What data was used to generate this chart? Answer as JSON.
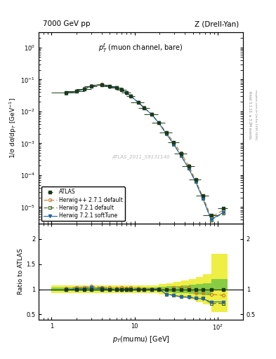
{
  "title_left": "7000 GeV pp",
  "title_right": "Z (Drell-Yan)",
  "annotation": "$p_T^{\\ell}$ (muon channel, bare)",
  "watermark": "ATLAS_2011_S9131140",
  "right_label1": "Rivet 3.1.10, ≥ 3.3M events",
  "right_label2": "mcplots.cern.ch [arXiv:1306.3436]",
  "xlabel": "$p_T$(mumu) [GeV]",
  "ylabel": "1/σ dσ/dp$_T$ [GeV$^{-1}$]",
  "ylabel_ratio": "Ratio to ATLAS",
  "xlim": [
    0.7,
    200
  ],
  "ylim_main": [
    3e-06,
    3
  ],
  "ylim_ratio": [
    0.4,
    2.3
  ],
  "atlas_x": [
    1.5,
    2.0,
    2.5,
    3.0,
    4.0,
    5.0,
    6.0,
    7.0,
    8.0,
    9.0,
    11.0,
    13.0,
    16.0,
    19.5,
    24.0,
    29.5,
    36.0,
    44.5,
    54.0,
    66.0,
    83.0,
    116.0
  ],
  "atlas_y": [
    0.038,
    0.042,
    0.05,
    0.06,
    0.068,
    0.06,
    0.055,
    0.047,
    0.038,
    0.03,
    0.019,
    0.013,
    0.008,
    0.0043,
    0.0022,
    0.00105,
    0.00048,
    0.000195,
    7.5e-05,
    2.3e-05,
    5.5e-06,
    9e-06
  ],
  "atlas_xerr_lo": [
    0.5,
    0.5,
    0.5,
    0.5,
    1.0,
    1.0,
    1.0,
    1.0,
    1.0,
    1.0,
    2.0,
    2.0,
    3.0,
    3.5,
    4.0,
    4.5,
    6.0,
    7.5,
    9.0,
    11.0,
    17.0,
    16.0
  ],
  "atlas_xerr_hi": [
    0.5,
    0.5,
    0.5,
    0.5,
    1.0,
    1.0,
    1.0,
    1.0,
    1.0,
    1.0,
    2.0,
    2.0,
    3.0,
    3.5,
    4.0,
    4.5,
    6.0,
    7.5,
    9.0,
    11.0,
    17.0,
    16.0
  ],
  "atlas_yerr_lo": [
    0.002,
    0.002,
    0.002,
    0.002,
    0.002,
    0.002,
    0.002,
    0.002,
    0.001,
    0.001,
    0.0005,
    0.0003,
    0.0002,
    8e-05,
    4e-05,
    2e-05,
    8e-06,
    4e-06,
    1.5e-06,
    5e-07,
    1.5e-07,
    2e-07
  ],
  "atlas_yerr_hi": [
    0.002,
    0.002,
    0.002,
    0.002,
    0.002,
    0.002,
    0.002,
    0.002,
    0.001,
    0.001,
    0.0005,
    0.0003,
    0.0002,
    8e-05,
    4e-05,
    2e-05,
    8e-06,
    4e-06,
    1.5e-06,
    5e-07,
    1.5e-07,
    2e-07
  ],
  "herwig_pp_x": [
    1.5,
    2.0,
    2.5,
    3.0,
    4.0,
    5.0,
    6.0,
    7.0,
    8.0,
    9.0,
    11.0,
    13.0,
    16.0,
    19.5,
    24.0,
    29.5,
    36.0,
    44.5,
    54.0,
    66.0,
    83.0,
    116.0
  ],
  "herwig_pp_ratio": [
    1.02,
    1.04,
    1.04,
    1.06,
    1.04,
    1.03,
    1.02,
    1.04,
    1.02,
    1.03,
    1.02,
    1.01,
    1.01,
    1.01,
    1.0,
    1.03,
    1.04,
    1.03,
    0.92,
    0.92,
    0.9,
    0.88
  ],
  "herwig721_x": [
    1.5,
    2.0,
    2.5,
    3.0,
    4.0,
    5.0,
    6.0,
    7.0,
    8.0,
    9.0,
    11.0,
    13.0,
    16.0,
    19.5,
    24.0,
    29.5,
    36.0,
    44.5,
    54.0,
    66.0,
    83.0,
    116.0
  ],
  "herwig721_ratio": [
    0.99,
    1.01,
    1.01,
    1.03,
    1.02,
    1.0,
    1.0,
    1.0,
    1.0,
    1.01,
    1.0,
    1.0,
    1.0,
    1.01,
    0.9,
    0.88,
    0.85,
    0.85,
    0.83,
    0.82,
    0.72,
    0.72
  ],
  "herwig721soft_x": [
    1.5,
    2.0,
    2.5,
    3.0,
    4.0,
    5.0,
    6.0,
    7.0,
    8.0,
    9.0,
    11.0,
    13.0,
    16.0,
    19.5,
    24.0,
    29.5,
    36.0,
    44.5,
    54.0,
    66.0,
    83.0,
    116.0
  ],
  "herwig721soft_ratio": [
    0.99,
    1.01,
    1.01,
    1.03,
    1.01,
    0.99,
    0.99,
    1.0,
    0.99,
    1.0,
    0.99,
    0.99,
    1.0,
    1.0,
    0.9,
    0.88,
    0.85,
    0.84,
    0.82,
    0.81,
    0.75,
    0.75
  ],
  "band_x_lo": [
    1.0,
    1.5,
    2.0,
    2.5,
    3.0,
    4.0,
    5.0,
    6.0,
    7.0,
    8.0,
    9.0,
    11.0,
    13.0,
    16.0,
    19.5,
    24.0,
    29.5,
    36.0,
    44.5,
    54.0,
    66.0,
    83.0
  ],
  "band_x_hi": [
    1.5,
    2.0,
    2.5,
    3.0,
    4.0,
    5.0,
    6.0,
    7.0,
    8.0,
    9.0,
    11.0,
    13.0,
    16.0,
    19.5,
    24.0,
    29.5,
    36.0,
    44.5,
    54.0,
    66.0,
    83.0,
    132.0
  ],
  "band_green_lo": [
    0.96,
    0.96,
    0.96,
    0.96,
    0.96,
    0.96,
    0.96,
    0.96,
    0.96,
    0.96,
    0.96,
    0.96,
    0.96,
    0.96,
    0.95,
    0.94,
    0.93,
    0.92,
    0.91,
    0.9,
    0.88,
    1.0
  ],
  "band_green_hi": [
    1.04,
    1.04,
    1.04,
    1.04,
    1.04,
    1.04,
    1.04,
    1.04,
    1.04,
    1.04,
    1.04,
    1.04,
    1.04,
    1.04,
    1.05,
    1.06,
    1.07,
    1.08,
    1.09,
    1.1,
    1.12,
    1.2
  ],
  "band_yellow_lo": [
    0.92,
    0.92,
    0.92,
    0.92,
    0.92,
    0.92,
    0.92,
    0.92,
    0.92,
    0.92,
    0.92,
    0.92,
    0.92,
    0.92,
    0.9,
    0.88,
    0.85,
    0.83,
    0.8,
    0.75,
    0.7,
    0.55
  ],
  "band_yellow_hi": [
    1.08,
    1.08,
    1.08,
    1.08,
    1.08,
    1.08,
    1.08,
    1.08,
    1.08,
    1.08,
    1.08,
    1.08,
    1.08,
    1.08,
    1.1,
    1.12,
    1.15,
    1.18,
    1.2,
    1.25,
    1.3,
    1.7
  ],
  "color_atlas": "#1a3a1a",
  "color_herwig_pp": "#cc7722",
  "color_herwig721": "#446622",
  "color_herwig721soft": "#2266aa",
  "color_band_green": "#88cc44",
  "color_band_yellow": "#eeee44"
}
